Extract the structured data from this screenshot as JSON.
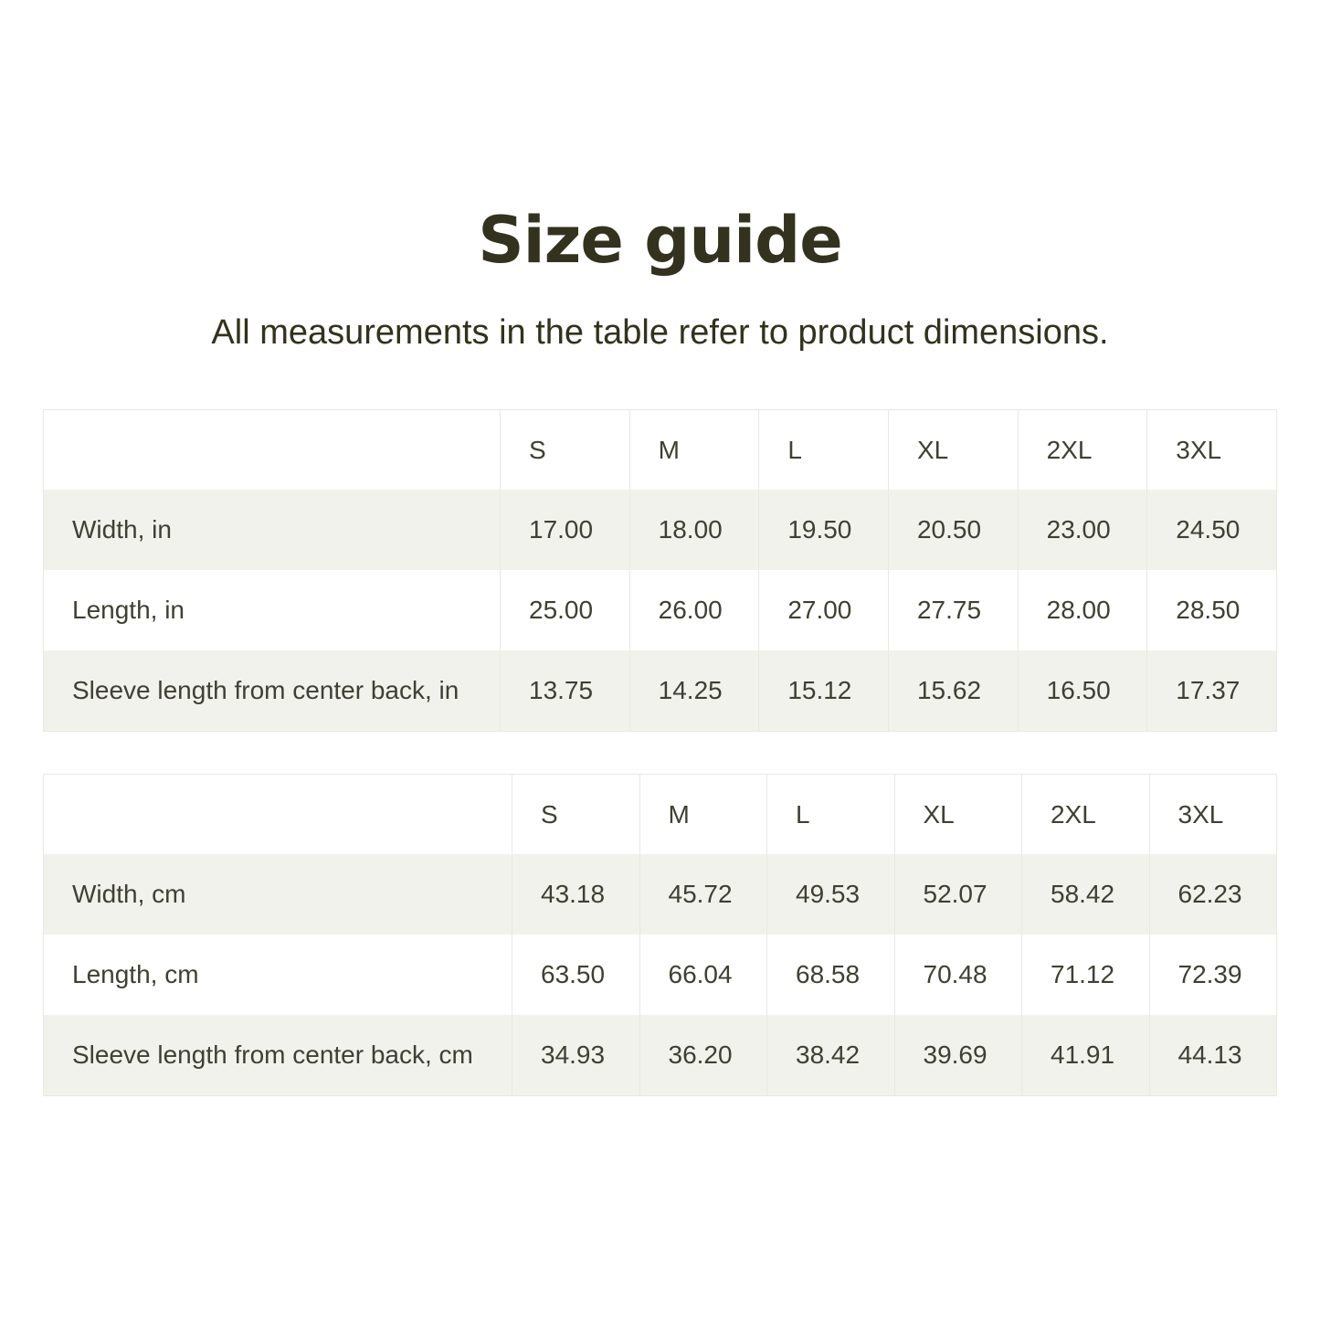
{
  "page": {
    "title": "Size guide",
    "subtitle": "All measurements in the table refer to product dimensions."
  },
  "colors": {
    "title_text": "#32321e",
    "body_text": "#3f3f33",
    "row_alternate": "#f2f2ed",
    "border": "#e9e8e3",
    "background": "#ffffff"
  },
  "tables": [
    {
      "name": "inches",
      "columns": [
        "S",
        "M",
        "L",
        "XL",
        "2XL",
        "3XL"
      ],
      "rows": [
        {
          "label": "Width, in",
          "values": [
            "17.00",
            "18.00",
            "19.50",
            "20.50",
            "23.00",
            "24.50"
          ]
        },
        {
          "label": "Length, in",
          "values": [
            "25.00",
            "26.00",
            "27.00",
            "27.75",
            "28.00",
            "28.50"
          ]
        },
        {
          "label": "Sleeve length from center back, in",
          "values": [
            "13.75",
            "14.25",
            "15.12",
            "15.62",
            "16.50",
            "17.37"
          ]
        }
      ]
    },
    {
      "name": "centimeters",
      "columns": [
        "S",
        "M",
        "L",
        "XL",
        "2XL",
        "3XL"
      ],
      "rows": [
        {
          "label": "Width, cm",
          "values": [
            "43.18",
            "45.72",
            "49.53",
            "52.07",
            "58.42",
            "62.23"
          ]
        },
        {
          "label": "Length, cm",
          "values": [
            "63.50",
            "66.04",
            "68.58",
            "70.48",
            "71.12",
            "72.39"
          ]
        },
        {
          "label": "Sleeve length from center back, cm",
          "values": [
            "34.93",
            "36.20",
            "38.42",
            "39.69",
            "41.91",
            "44.13"
          ]
        }
      ]
    }
  ]
}
